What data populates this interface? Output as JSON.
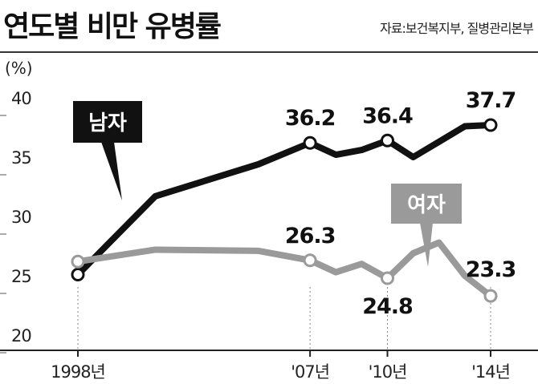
{
  "header": {
    "title": "연도별 비만 유병률",
    "source": "자료:보건복지부, 질병관리본부"
  },
  "chart_data": {
    "type": "line",
    "unit_label": "(%)",
    "ylim": [
      20,
      40
    ],
    "yticks": [
      "40",
      "35",
      "30",
      "25",
      "20"
    ],
    "x_tick_labels": [
      {
        "x": 1998,
        "label": "1998년"
      },
      {
        "x": 2007,
        "label": "'07년"
      },
      {
        "x": 2010,
        "label": "'10년"
      },
      {
        "x": 2014,
        "label": "'14년"
      }
    ],
    "x": [
      1998,
      2001,
      2005,
      2007,
      2008,
      2009,
      2010,
      2011,
      2012,
      2013,
      2014
    ],
    "series": [
      {
        "name": "남자",
        "color": "#111111",
        "values": [
          25.1,
          31.7,
          34.4,
          36.2,
          35.2,
          35.6,
          36.4,
          35.0,
          36.3,
          37.6,
          37.7
        ]
      },
      {
        "name": "여자",
        "color": "#9a9a9a",
        "values": [
          26.2,
          27.2,
          27.1,
          26.3,
          25.3,
          26.0,
          24.8,
          26.9,
          27.8,
          25.0,
          23.3
        ]
      }
    ],
    "data_labels": [
      {
        "series": 0,
        "index": 3,
        "text": "36.2"
      },
      {
        "series": 0,
        "index": 6,
        "text": "36.4"
      },
      {
        "series": 0,
        "index": 10,
        "text": "37.7"
      },
      {
        "series": 1,
        "index": 3,
        "text": "26.3"
      },
      {
        "series": 1,
        "index": 6,
        "text": "24.8"
      },
      {
        "series": 1,
        "index": 10,
        "text": "23.3"
      }
    ],
    "markers": [
      0,
      3,
      6,
      10
    ],
    "grid": false
  }
}
